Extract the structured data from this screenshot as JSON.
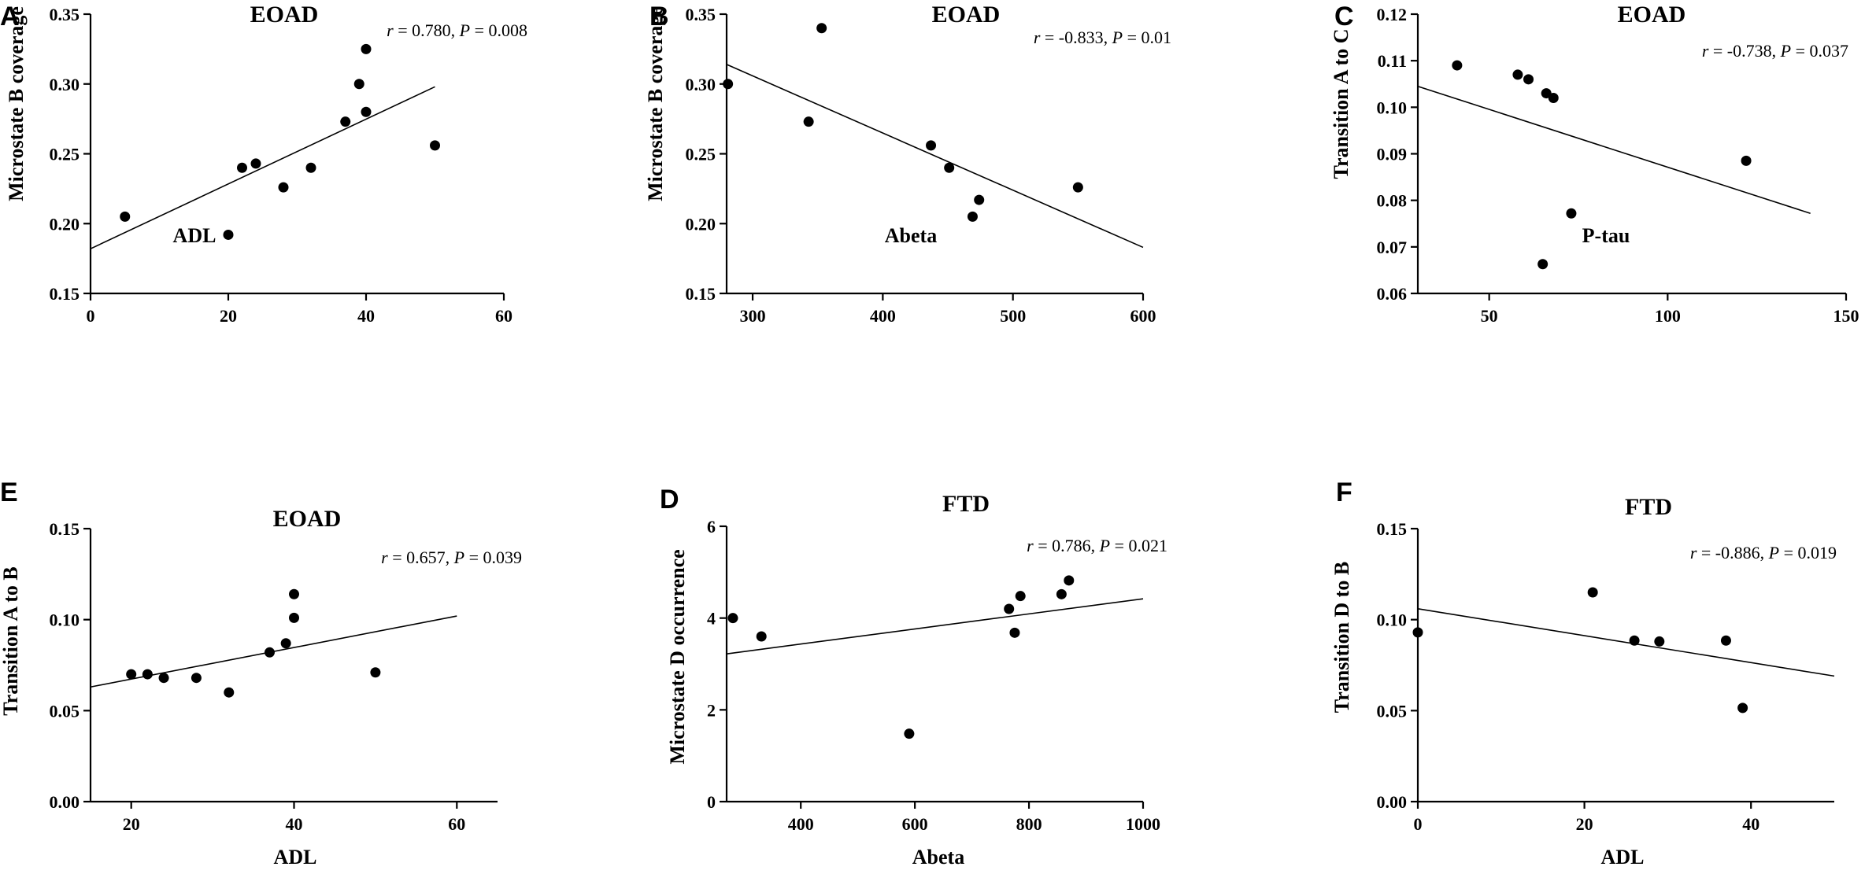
{
  "chart_data": [
    {
      "panel": "A",
      "type": "scatter",
      "title": "EOAD",
      "xlabel": "ADL",
      "ylabel": "Microstate B coverage",
      "annotation": {
        "r_label": "r",
        "r_value": " = 0.780, ",
        "p_label": "P",
        "p_value": " = 0.008"
      },
      "xlim": [
        0,
        60
      ],
      "ylim": [
        0.15,
        0.35
      ],
      "xticks": [
        0,
        20,
        40,
        60
      ],
      "xtick_labels": [
        "0",
        "20",
        "40",
        "60"
      ],
      "yticks": [
        0.15,
        0.2,
        0.25,
        0.3,
        0.35
      ],
      "ytick_labels": [
        "0.15",
        "0.20",
        "0.25",
        "0.30",
        "0.35"
      ],
      "points": [
        [
          5,
          0.205
        ],
        [
          20,
          0.192
        ],
        [
          22,
          0.24
        ],
        [
          24,
          0.243
        ],
        [
          28,
          0.226
        ],
        [
          32,
          0.24
        ],
        [
          37,
          0.273
        ],
        [
          39,
          0.3
        ],
        [
          40,
          0.325
        ],
        [
          40,
          0.28
        ],
        [
          50,
          0.256
        ]
      ],
      "fit_line": [
        [
          0,
          0.182
        ],
        [
          50,
          0.298
        ]
      ]
    },
    {
      "panel": "B",
      "type": "scatter",
      "title": "EOAD",
      "xlabel": "Abeta",
      "ylabel": "Microstate B coverage",
      "annotation": {
        "r_label": "r",
        "r_value": " = -0.833, ",
        "p_label": "P",
        "p_value": " = 0.01"
      },
      "xlim": [
        280,
        600
      ],
      "ylim": [
        0.15,
        0.35
      ],
      "xticks": [
        300,
        400,
        500,
        600
      ],
      "xtick_labels": [
        "300",
        "400",
        "500",
        "600"
      ],
      "yticks": [
        0.15,
        0.2,
        0.25,
        0.3,
        0.35
      ],
      "ytick_labels": [
        "0.15",
        "0.20",
        "0.25",
        "0.30",
        "0.35"
      ],
      "points": [
        [
          281,
          0.3
        ],
        [
          343,
          0.273
        ],
        [
          353,
          0.34
        ],
        [
          437,
          0.256
        ],
        [
          451,
          0.24
        ],
        [
          469,
          0.205
        ],
        [
          474,
          0.217
        ],
        [
          550,
          0.226
        ]
      ],
      "fit_line": [
        [
          280,
          0.314
        ],
        [
          600,
          0.183
        ]
      ]
    },
    {
      "panel": "C",
      "type": "scatter",
      "title": "EOAD",
      "xlabel": "P-tau",
      "ylabel": "Transition A to C",
      "annotation": {
        "r_label": "r",
        "r_value": " = -0.738, ",
        "p_label": "P",
        "p_value": " = 0.037"
      },
      "xlim": [
        30,
        150
      ],
      "ylim": [
        0.06,
        0.12
      ],
      "xticks": [
        50,
        100,
        150
      ],
      "xtick_labels": [
        "50",
        "100",
        "150"
      ],
      "yticks": [
        0.06,
        0.07,
        0.08,
        0.09,
        0.1,
        0.11,
        0.12
      ],
      "ytick_labels": [
        "0.06",
        "0.07",
        "0.08",
        "0.09",
        "0.10",
        "0.11",
        "0.12"
      ],
      "points": [
        [
          41,
          0.109
        ],
        [
          58,
          0.107
        ],
        [
          61,
          0.106
        ],
        [
          66,
          0.103
        ],
        [
          68,
          0.102
        ],
        [
          65,
          0.0663
        ],
        [
          73,
          0.0772
        ],
        [
          122,
          0.0885
        ]
      ],
      "fit_line": [
        [
          30,
          0.1045
        ],
        [
          140,
          0.0772
        ]
      ]
    },
    {
      "panel": "E",
      "type": "scatter",
      "title": "EOAD",
      "xlabel": "ADL",
      "ylabel": "Transition A to B",
      "annotation": {
        "r_label": "r",
        "r_value": " = 0.657, ",
        "p_label": "P",
        "p_value": " = 0.039"
      },
      "xlim": [
        15,
        65
      ],
      "ylim": [
        0,
        0.15
      ],
      "xticks": [
        20,
        40,
        60
      ],
      "xtick_labels": [
        "20",
        "40",
        "60"
      ],
      "yticks": [
        0,
        0.05,
        0.1,
        0.15
      ],
      "ytick_labels": [
        "0.00",
        "0.05",
        "0.10",
        "0.15"
      ],
      "points": [
        [
          20,
          0.07
        ],
        [
          22,
          0.07
        ],
        [
          24,
          0.068
        ],
        [
          28,
          0.068
        ],
        [
          32,
          0.06
        ],
        [
          37,
          0.082
        ],
        [
          39,
          0.087
        ],
        [
          40,
          0.101
        ],
        [
          40,
          0.114
        ],
        [
          50,
          0.071
        ]
      ],
      "fit_line": [
        [
          15,
          0.063
        ],
        [
          60,
          0.102
        ]
      ]
    },
    {
      "panel": "D",
      "type": "scatter",
      "title": "FTD",
      "xlabel": "Abeta",
      "ylabel": "Microstate D occurrence",
      "annotation": {
        "r_label": "r",
        "r_value": " = 0.786, ",
        "p_label": "P",
        "p_value": " = 0.021"
      },
      "xlim": [
        270,
        1000
      ],
      "ylim": [
        0,
        6
      ],
      "xticks": [
        400,
        600,
        800,
        1000
      ],
      "xtick_labels": [
        "400",
        "600",
        "800",
        "1000"
      ],
      "yticks": [
        0,
        2,
        4,
        6
      ],
      "ytick_labels": [
        "0",
        "2",
        "4",
        "6"
      ],
      "points": [
        [
          281,
          4.0
        ],
        [
          331,
          3.6
        ],
        [
          590,
          1.48
        ],
        [
          765,
          4.2
        ],
        [
          775,
          3.68
        ],
        [
          785,
          4.48
        ],
        [
          857,
          4.52
        ],
        [
          870,
          4.82
        ]
      ],
      "fit_line": [
        [
          270,
          3.22
        ],
        [
          1000,
          4.42
        ]
      ]
    },
    {
      "panel": "F",
      "type": "scatter",
      "title": "FTD",
      "xlabel": "ADL",
      "ylabel": "Transition D to B",
      "annotation": {
        "r_label": "r",
        "r_value": " = -0.886, ",
        "p_label": "P",
        "p_value": " = 0.019"
      },
      "xlim": [
        0,
        50
      ],
      "ylim": [
        0,
        0.15
      ],
      "xticks": [
        0,
        20,
        40
      ],
      "xtick_labels": [
        "0",
        "20",
        "40"
      ],
      "yticks": [
        0,
        0.05,
        0.1,
        0.15
      ],
      "ytick_labels": [
        "0.00",
        "0.05",
        "0.10",
        "0.15"
      ],
      "points": [
        [
          0,
          0.093
        ],
        [
          21,
          0.115
        ],
        [
          26,
          0.0885
        ],
        [
          29,
          0.088
        ],
        [
          37,
          0.0885
        ],
        [
          39,
          0.0515
        ]
      ],
      "fit_line": [
        [
          0,
          0.106
        ],
        [
          50,
          0.069
        ]
      ]
    }
  ]
}
